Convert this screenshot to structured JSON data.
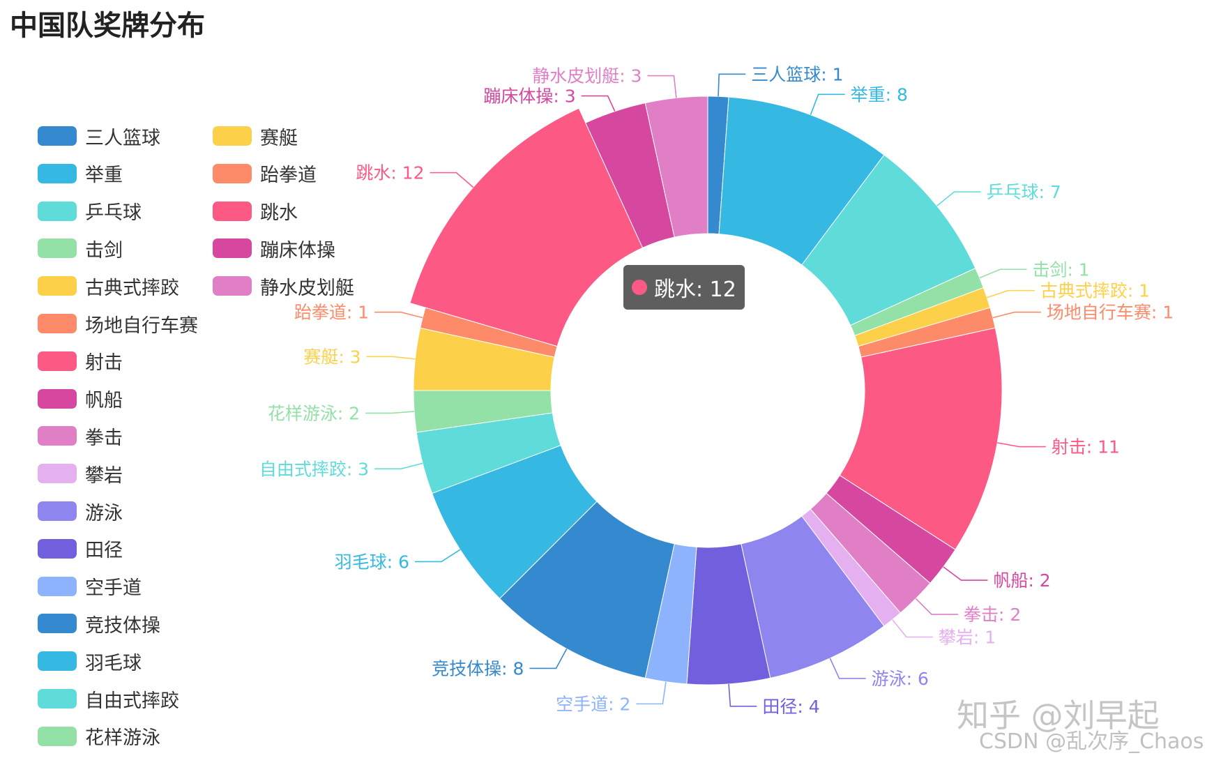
{
  "chart_data": {
    "type": "pie",
    "title": "中国队奖牌分布",
    "donut": true,
    "series": [
      {
        "name": "三人篮球",
        "value": 1,
        "color": "#3489cf"
      },
      {
        "name": "举重",
        "value": 8,
        "color": "#35b9e3"
      },
      {
        "name": "乒乓球",
        "value": 7,
        "color": "#5fdcda"
      },
      {
        "name": "击剑",
        "value": 1,
        "color": "#94e1a8"
      },
      {
        "name": "古典式摔跤",
        "value": 1,
        "color": "#fdd04a"
      },
      {
        "name": "场地自行车赛",
        "value": 1,
        "color": "#fd8a68"
      },
      {
        "name": "射击",
        "value": 11,
        "color": "#fc5a85"
      },
      {
        "name": "帆船",
        "value": 2,
        "color": "#d6479f"
      },
      {
        "name": "拳击",
        "value": 2,
        "color": "#e07fc6"
      },
      {
        "name": "攀岩",
        "value": 1,
        "color": "#e5b0f0"
      },
      {
        "name": "游泳",
        "value": 6,
        "color": "#8e85ef"
      },
      {
        "name": "田径",
        "value": 4,
        "color": "#7160dd"
      },
      {
        "name": "空手道",
        "value": 2,
        "color": "#8cb3fb"
      },
      {
        "name": "竞技体操",
        "value": 8,
        "color": "#3489cf"
      },
      {
        "name": "羽毛球",
        "value": 6,
        "color": "#35b9e3"
      },
      {
        "name": "自由式摔跤",
        "value": 3,
        "color": "#5fdcda"
      },
      {
        "name": "花样游泳",
        "value": 2,
        "color": "#94e1a8"
      },
      {
        "name": "赛艇",
        "value": 3,
        "color": "#fdd04a"
      },
      {
        "name": "跆拳道",
        "value": 1,
        "color": "#fd8a68"
      },
      {
        "name": "跳水",
        "value": 12,
        "color": "#fc5a85"
      },
      {
        "name": "蹦床体操",
        "value": 3,
        "color": "#d6479f"
      },
      {
        "name": "静水皮划艇",
        "value": 3,
        "color": "#e07fc6"
      }
    ],
    "label_separator": ": ",
    "legend_position": "left",
    "highlighted": "跳水"
  },
  "tooltip": {
    "text": "跳水: 12",
    "color": "#fc5a85"
  },
  "watermark": {
    "line1": "知乎 @刘早起",
    "line2": "CSDN @乱次序_Chaos"
  }
}
